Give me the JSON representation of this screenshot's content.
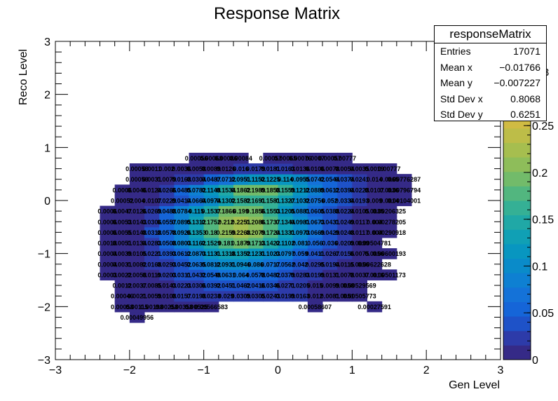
{
  "chart_data": {
    "type": "heatmap",
    "title": "Response Matrix",
    "xlabel": "Gen Level",
    "ylabel": "Reco Level",
    "xlim": [
      -3,
      3
    ],
    "ylim": [
      -3,
      3
    ],
    "x_ticks": [
      "−3",
      "−2",
      "−1",
      "0",
      "1",
      "2",
      "3"
    ],
    "y_ticks": [
      "−3",
      "−2",
      "−1",
      "0",
      "1",
      "2",
      "3"
    ],
    "x_tick_values": [
      -3,
      -2,
      -1,
      0,
      1,
      2,
      3
    ],
    "y_tick_values": [
      -3,
      -2,
      -1,
      0,
      1,
      2,
      3
    ],
    "bins": {
      "x_edges_min": -2.6,
      "bin_width": 0.2,
      "nx": 23,
      "y_edges_min": -2.4,
      "ny": 20
    },
    "color_scale": {
      "min": 0,
      "max": 0.34,
      "ticks": [
        0,
        0.05,
        0.1,
        0.15,
        0.2,
        0.25
      ],
      "tick_labels": [
        "0",
        "0.05",
        "0.1",
        "0.15",
        "0.2",
        "0.25"
      ],
      "overflow_label": "3"
    },
    "colors": [
      "#352a87",
      "#2d3ba9",
      "#1e52c8",
      "#1565d8",
      "#1472d8",
      "#0e80d2",
      "#0a8bc9",
      "#0896c0",
      "#10a0b5",
      "#20a8a6",
      "#35b095",
      "#52b67f",
      "#72bb6a",
      "#8ebd5a",
      "#a6be4f",
      "#bdbd48",
      "#d0bb43",
      "#e3b83c",
      "#f1bc38",
      "#f8cc2a",
      "#f9dc20",
      "#f9f910"
    ],
    "cells": [
      {
        "y": -2.2,
        "row": [
          0,
          0,
          0,
          0.00049956,
          0,
          0,
          0,
          0,
          0,
          0,
          0,
          0,
          0,
          0,
          0,
          0,
          0,
          0,
          0,
          0,
          0,
          0,
          0
        ]
      },
      {
        "y": -2.0,
        "row": [
          0,
          0,
          0.00058,
          0.00115,
          0.00198,
          0.00258,
          0.00358,
          0.00525,
          0.00566583,
          0,
          0,
          0,
          0,
          0,
          0,
          0.00058607,
          0,
          0,
          0,
          0.00027591,
          0,
          0,
          0
        ]
      },
      {
        "y": -1.8,
        "row": [
          0,
          0,
          0.00046,
          0.0021,
          0.0059,
          0.0108,
          0.0157,
          0.0198,
          0.0238,
          0.029,
          0.0309,
          0.0305,
          0.0243,
          0.0199,
          0.0163,
          0.012,
          0.0081,
          0.0051,
          0.00505773,
          0,
          0,
          0,
          0
        ]
      },
      {
        "y": -1.6,
        "row": [
          0,
          0,
          0.0012,
          0.0037,
          0.0085,
          0.0143,
          0.0223,
          0.0306,
          0.0392,
          0.0451,
          0.0462,
          0.0416,
          0.0346,
          0.0271,
          0.0205,
          0.015,
          0.0099,
          0.0058,
          0.00529569,
          0,
          0,
          0,
          0
        ]
      },
      {
        "y": -1.4,
        "row": [
          0,
          0.0003,
          0.0022,
          0.0058,
          0.0119,
          0.0203,
          0.0311,
          0.0432,
          0.0548,
          0.0631,
          0.064,
          0.0578,
          0.0482,
          0.0379,
          0.0283,
          0.0199,
          0.0131,
          0.0078,
          0.0037,
          0.0016,
          0.00501173,
          0,
          0
        ]
      },
      {
        "y": -1.2,
        "row": [
          0,
          0.0004,
          0.0031,
          0.0082,
          0.0168,
          0.0293,
          0.0452,
          0.0635,
          0.0812,
          0.0931,
          0.0946,
          0.086,
          0.0717,
          0.0562,
          0.042,
          0.0295,
          0.0194,
          0.0115,
          0.0056,
          0.00622628,
          0,
          0,
          0
        ]
      },
      {
        "y": -1.0,
        "row": [
          0,
          0.0004,
          0.0039,
          0.0105,
          0.0221,
          0.0393,
          0.0612,
          0.0873,
          0.1131,
          0.1318,
          0.1352,
          0.1231,
          0.1023,
          0.0797,
          0.059,
          0.0411,
          0.0267,
          0.0156,
          0.0075,
          0.0056,
          0.00600193,
          0,
          0
        ]
      },
      {
        "y": -0.8,
        "row": [
          0,
          0.0018,
          0.0051,
          0.0134,
          0.0283,
          0.0508,
          0.0803,
          0.1162,
          0.1529,
          0.181,
          0.1879,
          0.1713,
          0.1422,
          0.1102,
          0.081,
          0.056,
          0.036,
          0.0209,
          0.0099,
          0.00504781,
          0,
          0,
          0
        ]
      },
      {
        "y": -0.6,
        "row": [
          0,
          0.0006,
          0.0055,
          0.0148,
          0.0318,
          0.0578,
          0.0926,
          0.1353,
          0.18,
          0.2159,
          0.2268,
          0.2079,
          0.1724,
          0.1331,
          0.0973,
          0.0669,
          0.0429,
          0.0248,
          0.0117,
          0.004,
          0.00290918,
          0,
          0
        ]
      },
      {
        "y": -0.4,
        "row": [
          0,
          0.0006,
          0.0053,
          0.0143,
          0.0306,
          0.0557,
          0.0895,
          0.1312,
          0.1752,
          0.212,
          0.2251,
          0.2086,
          0.1737,
          0.1344,
          0.0981,
          0.0673,
          0.0431,
          0.0249,
          0.0117,
          0.004,
          0.00278205,
          0,
          0
        ]
      },
      {
        "y": -0.2,
        "row": [
          0,
          0.0006,
          0.0047,
          0.0126,
          0.0269,
          0.0488,
          0.0784,
          0.115,
          0.1537,
          0.1866,
          0.199,
          0.1856,
          0.1553,
          0.1205,
          0.0881,
          0.0605,
          0.0388,
          0.0224,
          0.0105,
          0.0035,
          0.00206325,
          0,
          0
        ]
      },
      {
        "y": 0.0,
        "row": [
          0,
          0,
          0.00052,
          0.004,
          0.0107,
          0.0229,
          0.0414,
          0.0664,
          0.0974,
          0.1302,
          0.1582,
          0.1691,
          0.1581,
          0.1327,
          0.1032,
          0.0756,
          0.052,
          0.0334,
          0.0193,
          0.009,
          0.0014,
          0.00104001,
          0
        ]
      },
      {
        "y": 0.2,
        "row": [
          0,
          0,
          0.0006,
          0.0046,
          0.0124,
          0.0266,
          0.0485,
          0.0782,
          0.1148,
          0.1534,
          0.1862,
          0.1989,
          0.1858,
          0.1559,
          0.1212,
          0.0889,
          0.0612,
          0.0394,
          0.0228,
          0.0107,
          0.0036,
          0.00796794,
          0
        ]
      },
      {
        "y": 0.4,
        "row": [
          0,
          0,
          0,
          0.00058,
          0.0031,
          0.0079,
          0.0168,
          0.0304,
          0.0487,
          0.0712,
          0.0951,
          0.1152,
          0.1225,
          0.114,
          0.0955,
          0.0742,
          0.0544,
          0.0374,
          0.0241,
          0.014,
          0.0065,
          0.00776287,
          0
        ]
      },
      {
        "y": 0.6,
        "row": [
          0,
          0,
          0,
          0.00058,
          0.0011,
          0.002,
          0.0036,
          0.0058,
          0.0089,
          0.0126,
          0.016,
          0.0179,
          0.0181,
          0.0163,
          0.0136,
          0.0106,
          0.0078,
          0.0054,
          0.0035,
          0.0019,
          0.00777,
          0,
          0
        ]
      },
      {
        "y": 0.8,
        "row": [
          0,
          0,
          0,
          0,
          0,
          0,
          0,
          0.00056,
          0.00068,
          0.00086,
          0.00084,
          0,
          0.00057,
          0.00065,
          0.00076,
          0.0007,
          0.00057,
          0.00777,
          0,
          0,
          0,
          0,
          0
        ]
      }
    ]
  },
  "stats": {
    "title": "responseMatrix",
    "rows": [
      {
        "label": "Entries",
        "value": "17071"
      },
      {
        "label": "Mean x",
        "value": "−0.01766"
      },
      {
        "label": "Mean y",
        "value": "−0.007227"
      },
      {
        "label": "Std Dev x",
        "value": "0.8068"
      },
      {
        "label": "Std Dev y",
        "value": "0.6251"
      }
    ]
  }
}
